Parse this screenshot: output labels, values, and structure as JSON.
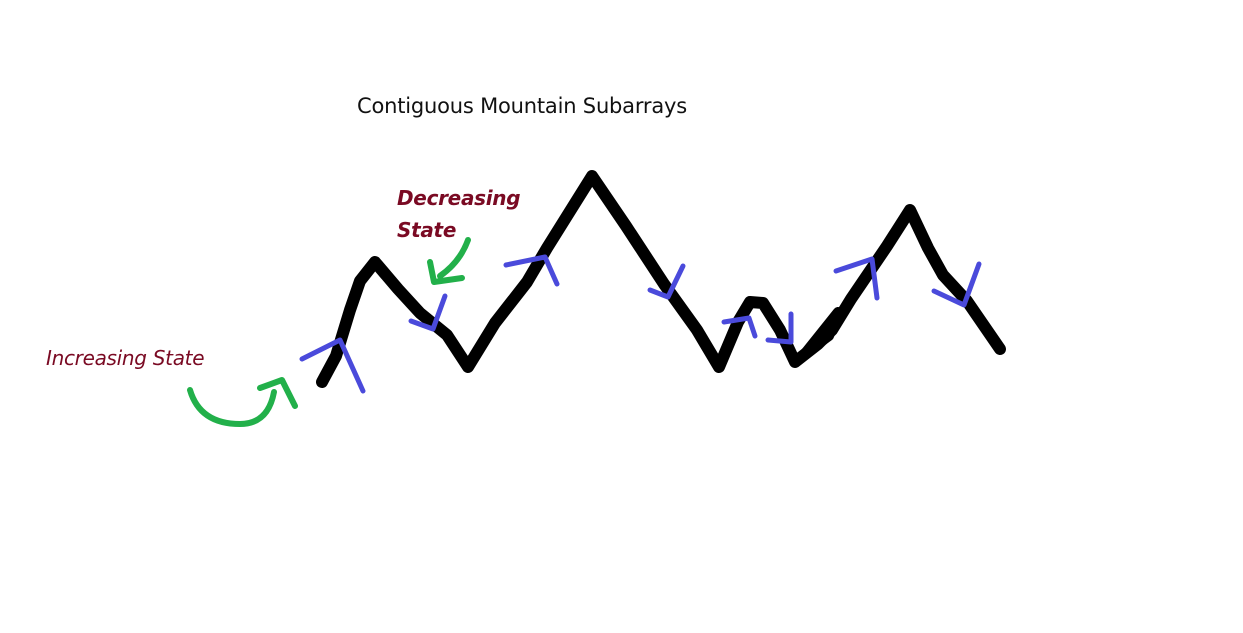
{
  "title": "Contiguous Mountain Subarrays",
  "labels": {
    "increasing": "Increasing State",
    "decreasing_line1": "Decreasing",
    "decreasing_line2": "State"
  },
  "colors": {
    "mountain": "#000000",
    "direction_marks": "#4a4adb",
    "pointer_arrows": "#22b04a",
    "label_text": "#7a0a23",
    "title_text": "#111111"
  }
}
